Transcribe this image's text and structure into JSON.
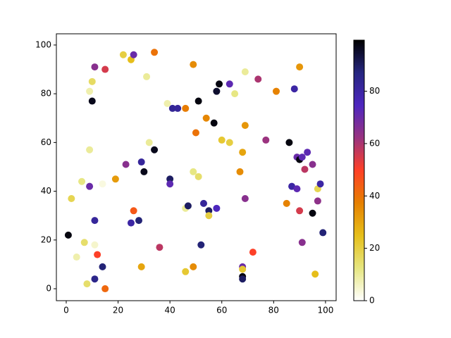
{
  "chart_data": {
    "type": "scatter",
    "x": [
      0.8,
      2,
      4,
      6,
      7,
      8,
      9,
      9,
      9,
      10,
      10,
      11,
      11,
      11,
      11,
      12,
      14,
      14,
      15,
      15,
      19,
      22,
      23,
      25,
      25,
      26,
      26,
      28,
      29,
      29,
      30,
      31,
      32,
      34,
      34,
      36,
      39,
      40,
      40,
      41,
      43,
      46,
      46,
      46,
      47,
      49,
      49,
      49,
      50,
      51,
      51,
      52,
      53,
      54,
      55,
      55,
      57,
      58,
      58,
      59,
      60,
      63,
      63,
      65,
      67,
      68,
      68,
      68,
      68,
      68,
      69,
      69,
      69,
      72,
      74,
      77,
      81,
      85,
      86,
      87,
      88,
      89,
      89,
      90,
      90,
      90,
      91,
      91,
      92,
      93,
      95,
      95,
      96,
      97,
      97,
      98,
      99
    ],
    "values": [
      22,
      37,
      13,
      44,
      19,
      2,
      42,
      57,
      81,
      85,
      77,
      91,
      28,
      18,
      4,
      14,
      43,
      9,
      90,
      0,
      45,
      96,
      51,
      94,
      27,
      96,
      32,
      28,
      9,
      52,
      48,
      87,
      60,
      97,
      57,
      17,
      76,
      45,
      43,
      74,
      74,
      74,
      33,
      7,
      34,
      92,
      48,
      9,
      64,
      46,
      77,
      18,
      35,
      70,
      32,
      30,
      68,
      81,
      33,
      84,
      61,
      60,
      84,
      80,
      48,
      56,
      9,
      8,
      5,
      4,
      67,
      37,
      89,
      15,
      86,
      61,
      81,
      35,
      60,
      42,
      82,
      41,
      54,
      91,
      32,
      53,
      54,
      19,
      49,
      56,
      51,
      31,
      6,
      41,
      36,
      43,
      23
    ],
    "color_values": [
      98,
      18,
      8,
      12,
      15,
      15,
      70,
      10,
      8,
      16,
      97,
      65,
      82,
      5,
      85,
      50,
      3,
      88,
      55,
      42,
      32,
      20,
      65,
      25,
      80,
      70,
      45,
      88,
      30,
      82,
      97,
      10,
      10,
      40,
      97,
      58,
      8,
      90,
      72,
      83,
      82,
      38,
      10,
      22,
      90,
      35,
      12,
      35,
      40,
      15,
      98,
      88,
      82,
      36,
      90,
      20,
      98,
      95,
      75,
      98,
      22,
      20,
      72,
      12,
      35,
      30,
      70,
      22,
      98,
      90,
      33,
      65,
      10,
      50,
      60,
      62,
      37,
      37,
      98,
      80,
      80,
      72,
      70,
      33,
      55,
      98,
      72,
      65,
      58,
      72,
      65,
      98,
      25,
      18,
      64,
      80,
      88
    ],
    "colormap": [
      "#ffffff",
      "#e6e680",
      "#e6bf1a",
      "#e68000",
      "#ff4026",
      "#993380",
      "#4d26bf",
      "#262680",
      "#000000"
    ],
    "xlim": [
      -3.8,
      104.1
    ],
    "xticks": [
      0,
      20,
      40,
      60,
      80,
      100
    ],
    "ylim": [
      -4.9,
      104.6
    ],
    "yticks": [
      0,
      20,
      40,
      60,
      80,
      100
    ],
    "clim": [
      0,
      99.5
    ],
    "cticks": [
      0,
      20,
      40,
      60,
      80
    ]
  }
}
